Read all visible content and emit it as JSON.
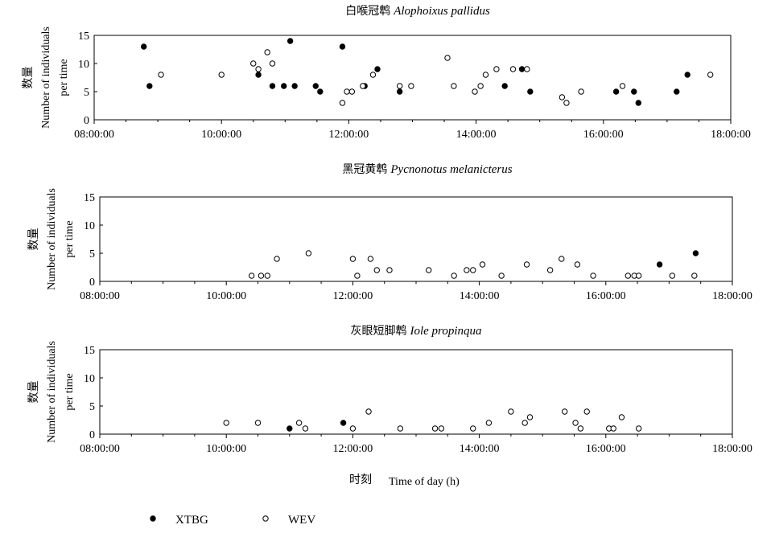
{
  "chart_data": [
    {
      "type": "scatter",
      "title_cn": "白喉冠鹎",
      "title_en": "Alophoixus pallidus",
      "ylabel_cn": "数量",
      "ylabel_en_1": "Number of individuals",
      "ylabel_en_2": "per time",
      "ylim": [
        0,
        15
      ],
      "yticks": [
        "0",
        "5",
        "10",
        "15"
      ],
      "xlim": [
        8,
        18
      ],
      "xticks": [
        "08:00:00",
        "10:00:00",
        "12:00:00",
        "14:00:00",
        "16:00:00",
        "18:00:00"
      ],
      "series": [
        {
          "name": "XTBG",
          "points": [
            [
              8.78,
              13
            ],
            [
              8.87,
              6
            ],
            [
              10.58,
              8
            ],
            [
              10.8,
              6
            ],
            [
              10.98,
              6
            ],
            [
              11.08,
              14
            ],
            [
              11.15,
              6
            ],
            [
              11.48,
              6
            ],
            [
              11.55,
              5
            ],
            [
              11.9,
              13
            ],
            [
              12.25,
              6
            ],
            [
              12.45,
              9
            ],
            [
              12.8,
              5
            ],
            [
              14.45,
              6
            ],
            [
              14.72,
              9
            ],
            [
              14.85,
              5
            ],
            [
              16.2,
              5
            ],
            [
              16.48,
              5
            ],
            [
              16.55,
              3
            ],
            [
              17.15,
              5
            ],
            [
              17.32,
              8
            ]
          ]
        },
        {
          "name": "WEV",
          "points": [
            [
              9.05,
              8
            ],
            [
              10.0,
              8
            ],
            [
              10.5,
              10
            ],
            [
              10.58,
              9
            ],
            [
              10.72,
              12
            ],
            [
              10.8,
              10
            ],
            [
              11.9,
              3
            ],
            [
              11.97,
              5
            ],
            [
              12.05,
              5
            ],
            [
              12.22,
              6
            ],
            [
              12.38,
              8
            ],
            [
              12.8,
              6
            ],
            [
              12.98,
              6
            ],
            [
              13.55,
              11
            ],
            [
              13.65,
              6
            ],
            [
              13.98,
              5
            ],
            [
              14.07,
              6
            ],
            [
              14.15,
              8
            ],
            [
              14.32,
              9
            ],
            [
              14.58,
              9
            ],
            [
              14.8,
              9
            ],
            [
              15.35,
              4
            ],
            [
              15.42,
              3
            ],
            [
              15.65,
              5
            ],
            [
              16.3,
              6
            ],
            [
              17.68,
              8
            ]
          ]
        }
      ]
    },
    {
      "type": "scatter",
      "title_cn": "黑冠黄鹎",
      "title_en": "Pycnonotus melanicterus",
      "ylabel_cn": "数量",
      "ylabel_en_1": "Number of individuals",
      "ylabel_en_2": "per time",
      "ylim": [
        0,
        15
      ],
      "yticks": [
        "0",
        "5",
        "10",
        "15"
      ],
      "xlim": [
        8,
        18
      ],
      "xticks": [
        "08:00:00",
        "10:00:00",
        "12:00:00",
        "14:00:00",
        "16:00:00",
        "18:00:00"
      ],
      "series": [
        {
          "name": "XTBG",
          "points": [
            [
              16.85,
              3
            ],
            [
              17.42,
              5
            ]
          ]
        },
        {
          "name": "WEV",
          "points": [
            [
              10.4,
              1
            ],
            [
              10.55,
              1
            ],
            [
              10.65,
              1
            ],
            [
              10.8,
              4
            ],
            [
              11.3,
              5
            ],
            [
              12.0,
              4
            ],
            [
              12.07,
              1
            ],
            [
              12.28,
              4
            ],
            [
              12.38,
              2
            ],
            [
              12.58,
              2
            ],
            [
              13.2,
              2
            ],
            [
              13.6,
              1
            ],
            [
              13.8,
              2
            ],
            [
              13.9,
              2
            ],
            [
              14.05,
              3
            ],
            [
              14.35,
              1
            ],
            [
              14.75,
              3
            ],
            [
              15.12,
              2
            ],
            [
              15.3,
              4
            ],
            [
              15.55,
              3
            ],
            [
              15.8,
              1
            ],
            [
              16.35,
              1
            ],
            [
              16.45,
              1
            ],
            [
              16.52,
              1
            ],
            [
              17.05,
              1
            ],
            [
              17.4,
              1
            ]
          ]
        }
      ]
    },
    {
      "type": "scatter",
      "title_cn": "灰眼短脚鹎",
      "title_en": "Iole propinqua",
      "ylabel_cn": "数量",
      "ylabel_en_1": "Number of individuals",
      "ylabel_en_2": "per time",
      "ylim": [
        0,
        15
      ],
      "yticks": [
        "0",
        "5",
        "10",
        "15"
      ],
      "xlim": [
        8,
        18
      ],
      "xticks": [
        "08:00:00",
        "10:00:00",
        "12:00:00",
        "14:00:00",
        "16:00:00",
        "18:00:00"
      ],
      "series": [
        {
          "name": "XTBG",
          "points": [
            [
              11.0,
              1
            ],
            [
              11.85,
              2
            ]
          ]
        },
        {
          "name": "WEV",
          "points": [
            [
              10.0,
              2
            ],
            [
              10.5,
              2
            ],
            [
              11.15,
              2
            ],
            [
              11.25,
              1
            ],
            [
              12.0,
              1
            ],
            [
              12.25,
              4
            ],
            [
              12.75,
              1
            ],
            [
              13.3,
              1
            ],
            [
              13.4,
              1
            ],
            [
              13.9,
              1
            ],
            [
              14.15,
              2
            ],
            [
              14.5,
              4
            ],
            [
              14.72,
              2
            ],
            [
              14.8,
              3
            ],
            [
              15.35,
              4
            ],
            [
              15.52,
              2
            ],
            [
              15.6,
              1
            ],
            [
              15.7,
              4
            ],
            [
              16.05,
              1
            ],
            [
              16.12,
              1
            ],
            [
              16.25,
              3
            ],
            [
              16.52,
              1
            ]
          ]
        }
      ]
    }
  ],
  "xlabel_cn": "时刻",
  "xlabel_en": "Time of day (h)",
  "legend": [
    {
      "label": "XTBG",
      "marker": "filled"
    },
    {
      "label": "WEV",
      "marker": "open"
    }
  ]
}
